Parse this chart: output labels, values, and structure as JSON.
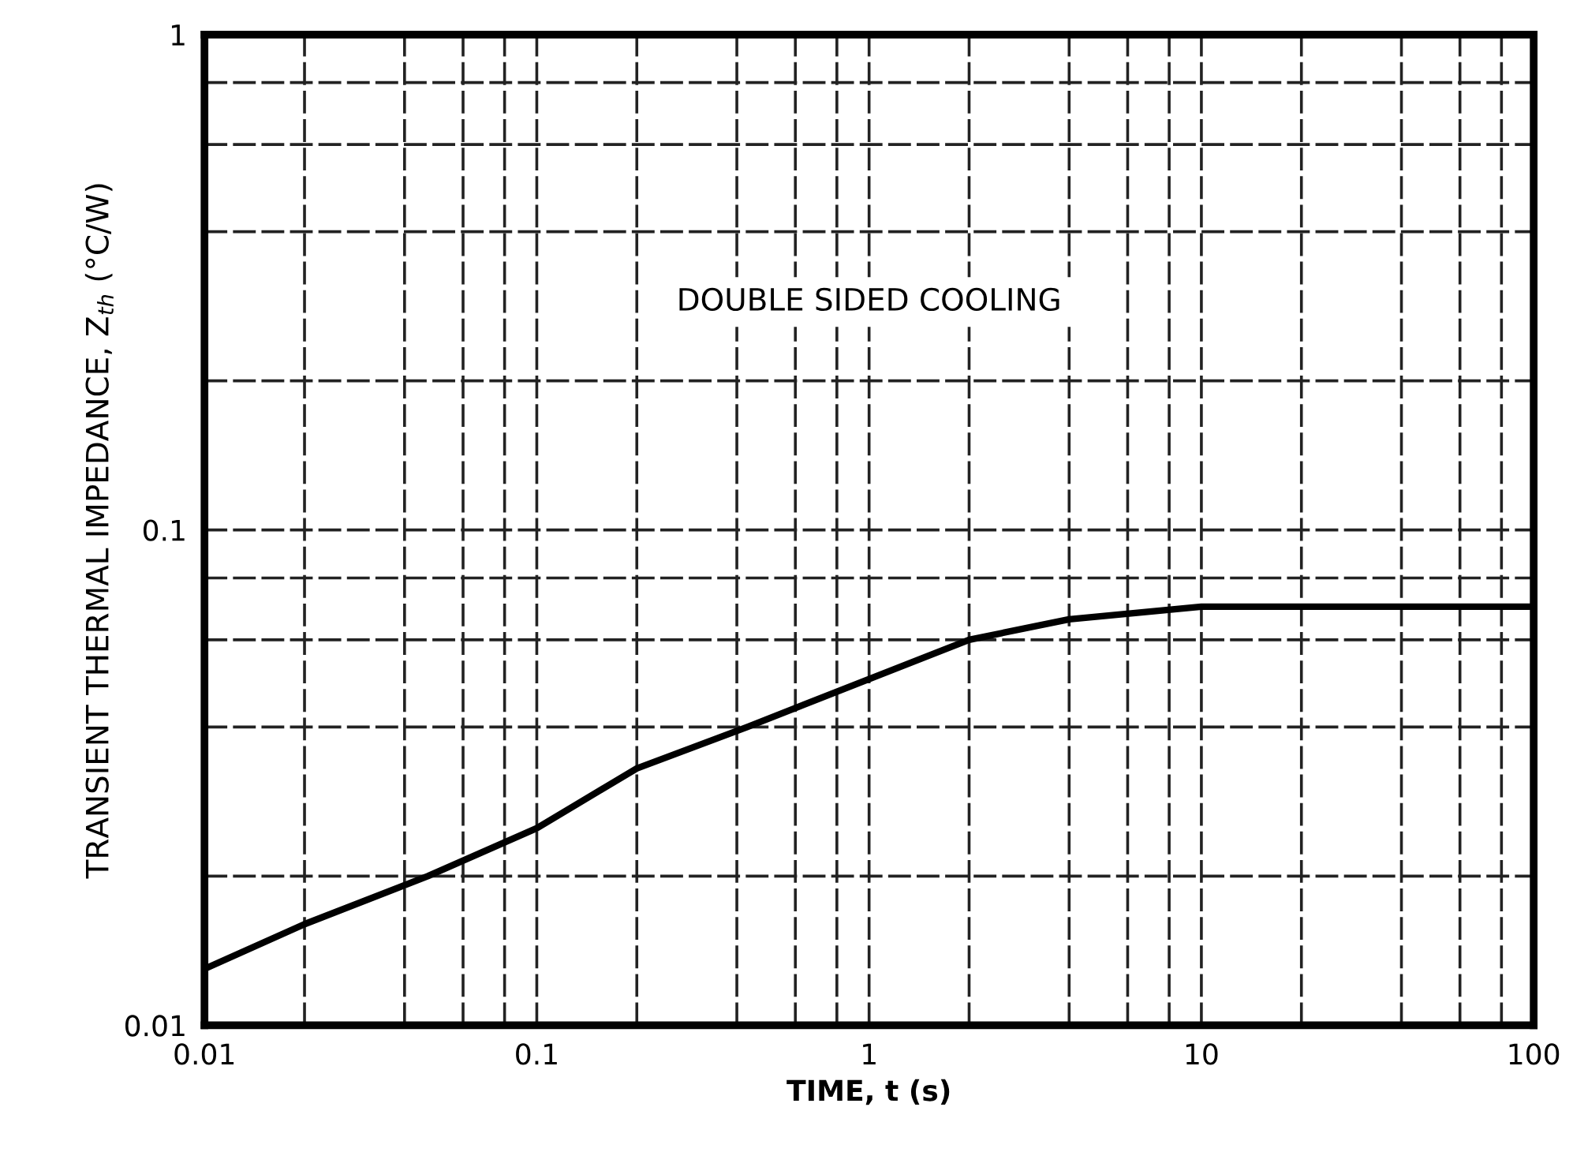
{
  "chart_data": {
    "type": "line",
    "xlabel": "TIME, t (s)",
    "ylabel": "TRANSIENT THERMAL IMPEDANCE, Z$_{th}$ (°C/W)",
    "annotations": [
      "DOUBLE SIDED COOLING"
    ],
    "log": "xy",
    "xlim": [
      0.01,
      100
    ],
    "ylim": [
      0.01,
      1
    ],
    "xticks": [
      0.01,
      {
        "value": 0.02,
        "label": null
      },
      {
        "value": 0.04,
        "label": null
      },
      {
        "value": 0.06,
        "label": null
      },
      {
        "value": 0.08,
        "label": null
      },
      0.1,
      {
        "value": 0.2,
        "label": null
      },
      {
        "value": 0.4,
        "label": null
      },
      {
        "value": 0.6,
        "label": null
      },
      {
        "value": 0.8,
        "label": null
      },
      1,
      {
        "value": 2,
        "label": null
      },
      {
        "value": 4,
        "label": null
      },
      {
        "value": 6,
        "label": null
      },
      {
        "value": 8,
        "label": null
      },
      10,
      {
        "value": 20,
        "label": null
      },
      {
        "value": 40,
        "label": null
      },
      {
        "value": 60,
        "label": null
      },
      {
        "value": 80,
        "label": null
      },
      100
    ],
    "yticks": [
      0.01,
      {
        "value": 0.02,
        "label": null
      },
      {
        "value": 0.04,
        "label": null
      },
      {
        "value": 0.06,
        "label": null
      },
      {
        "value": 0.08,
        "label": null
      },
      0.1,
      {
        "value": 0.2,
        "label": null
      },
      {
        "value": 0.4,
        "label": null
      },
      {
        "value": 0.6,
        "label": null
      },
      {
        "value": 0.8,
        "label": null
      },
      1
    ],
    "grid": true,
    "series": [
      {
        "color": "#000000",
        "x": [
          0.01,
          0.02,
          0.047,
          0.1,
          0.2,
          0.43,
          1,
          2,
          4,
          10,
          20,
          50,
          100
        ],
        "values": [
          0.013,
          0.016,
          0.02,
          0.025,
          0.033,
          0.04,
          0.05,
          0.06,
          0.066,
          0.07,
          0.07,
          0.07,
          0.07
        ]
      }
    ]
  }
}
